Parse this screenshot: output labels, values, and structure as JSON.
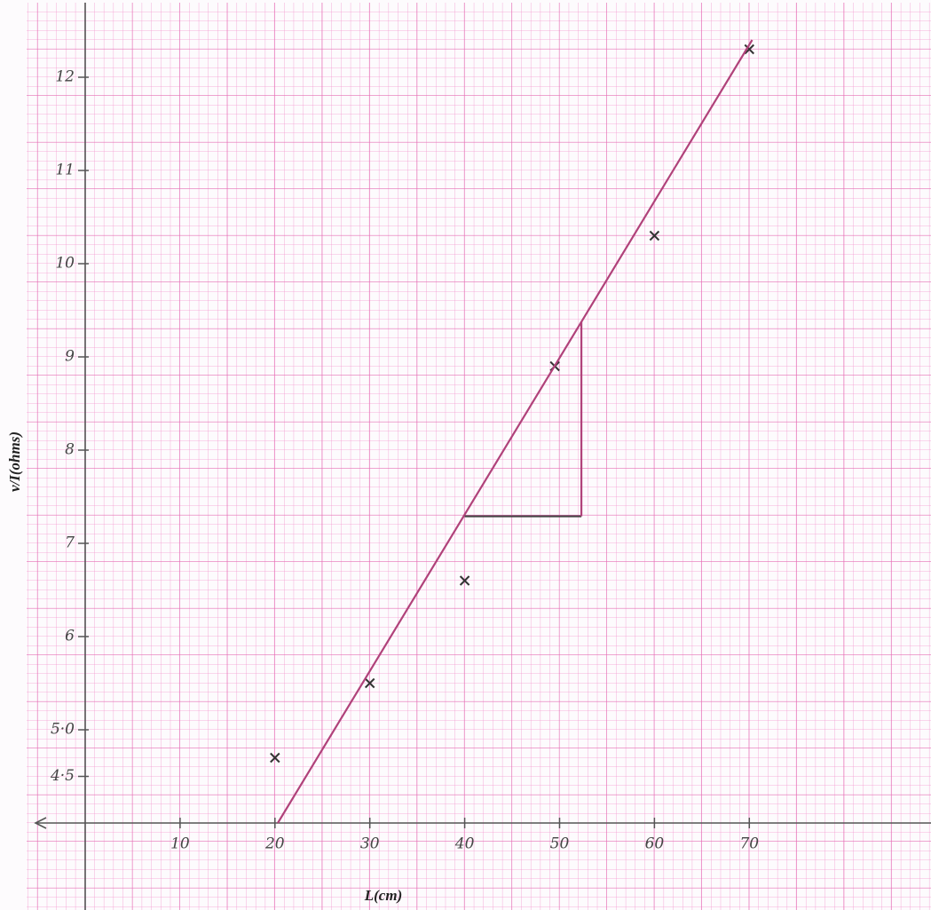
{
  "chart_data": {
    "type": "scatter",
    "x_label": "L(cm)",
    "y_label": "v/I(ohms)",
    "xlim": [
      -5,
      89
    ],
    "ylim": [
      4,
      12.8
    ],
    "xticks": [
      10,
      20,
      30,
      40,
      50,
      60,
      70
    ],
    "yticks": [
      {
        "value": 4.5,
        "label": "4·5"
      },
      {
        "value": 5,
        "label": "5·0"
      },
      6,
      7,
      8,
      9,
      10,
      11,
      12
    ],
    "series": [
      {
        "style": "points",
        "color": "#333333",
        "x": [
          20,
          30,
          40,
          49.5,
          60,
          70
        ],
        "values": [
          4.7,
          5.5,
          6.6,
          8.9,
          10.3,
          12.3
        ]
      },
      {
        "style": "line",
        "color": "#b0427a",
        "x": [
          20.3,
          70.3
        ],
        "values": [
          4.0,
          12.4
        ]
      },
      {
        "style": "line",
        "color": "#444444",
        "x": [
          40,
          52.3
        ],
        "values": [
          7.29,
          7.29
        ]
      },
      {
        "style": "line",
        "color": "#b0427a",
        "x": [
          52.3,
          52.3
        ],
        "values": [
          7.29,
          9.38
        ]
      }
    ]
  }
}
